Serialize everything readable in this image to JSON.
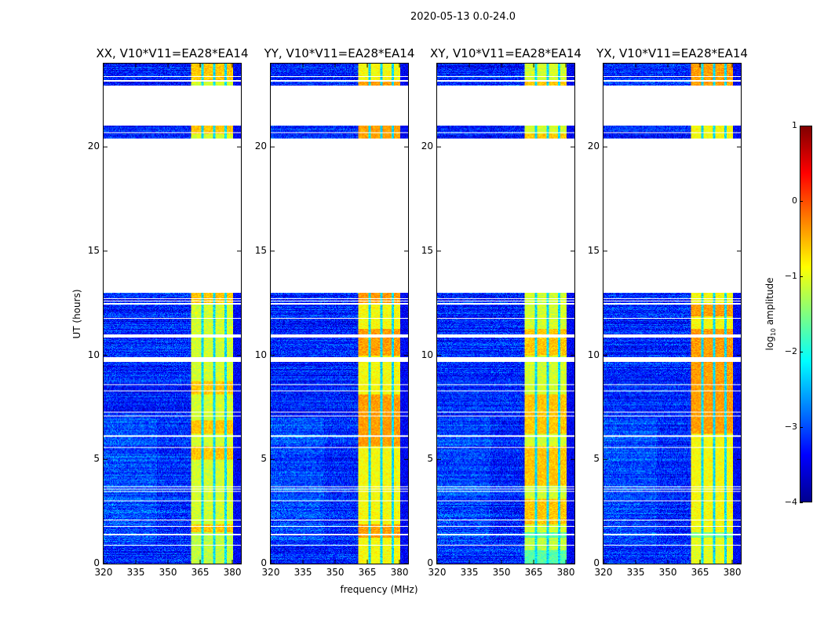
{
  "chart_data": {
    "type": "heatmap",
    "title": "2020-05-13 0.0-24.0",
    "xlabel": "frequency (MHz)",
    "ylabel": "UT (hours)",
    "xlim": [
      320,
      384
    ],
    "ylim": [
      0,
      24
    ],
    "xticks": [
      "320",
      "335",
      "350",
      "365",
      "380"
    ],
    "xtick_values": [
      320,
      335,
      350,
      365,
      380
    ],
    "yticks": [
      "0",
      "5",
      "10",
      "15",
      "20"
    ],
    "ytick_values": [
      0,
      5,
      10,
      15,
      20
    ],
    "panels": [
      {
        "title": "XX, V10*V11=EA28*EA14",
        "seed": 11
      },
      {
        "title": "YY, V10*V11=EA28*EA14",
        "seed": 23
      },
      {
        "title": "XY, V10*V11=EA28*EA14",
        "seed": 37
      },
      {
        "title": "YX, V10*V11=EA28*EA14",
        "seed": 51
      }
    ],
    "data_blocks_hours": [
      [
        0,
        13.0
      ],
      [
        20.4,
        21.05
      ],
      [
        22.95,
        24
      ]
    ],
    "flagged_hours": [
      [
        0.85,
        0.9
      ],
      [
        1.35,
        1.42
      ],
      [
        1.75,
        1.8
      ],
      [
        2.05,
        2.1
      ],
      [
        3.0,
        3.05
      ],
      [
        3.45,
        3.5
      ],
      [
        3.58,
        3.62
      ],
      [
        3.68,
        3.72
      ],
      [
        5.55,
        5.6
      ],
      [
        6.1,
        6.15
      ],
      [
        7.05,
        7.1
      ],
      [
        7.25,
        7.3
      ],
      [
        8.25,
        8.3
      ],
      [
        8.55,
        8.6
      ],
      [
        9.7,
        9.9
      ],
      [
        10.85,
        11.0
      ],
      [
        11.75,
        11.8
      ],
      [
        12.45,
        12.5
      ],
      [
        12.58,
        12.62
      ],
      [
        12.68,
        12.72
      ],
      [
        20.65,
        20.7
      ],
      [
        23.35,
        23.4
      ],
      [
        23.15,
        23.2
      ]
    ],
    "strong_band_mhz": [
      361,
      380.5
    ],
    "band_gaps_mhz": [
      [
        365.5,
        366.5
      ],
      [
        371,
        372
      ],
      [
        376.5,
        377.5
      ]
    ],
    "background_log10_amplitude": -3.2,
    "band_log10_amplitude": -1.0,
    "colorbar": {
      "label_main": "log",
      "label_sub": "10",
      "label_tail": " amplitude",
      "range": [
        -4,
        1
      ],
      "ticks": [
        "1",
        "0",
        "−1",
        "−2",
        "−3",
        "−4"
      ],
      "tick_values": [
        1,
        0,
        -1,
        -2,
        -3,
        -4
      ],
      "colormap": "jet"
    }
  }
}
